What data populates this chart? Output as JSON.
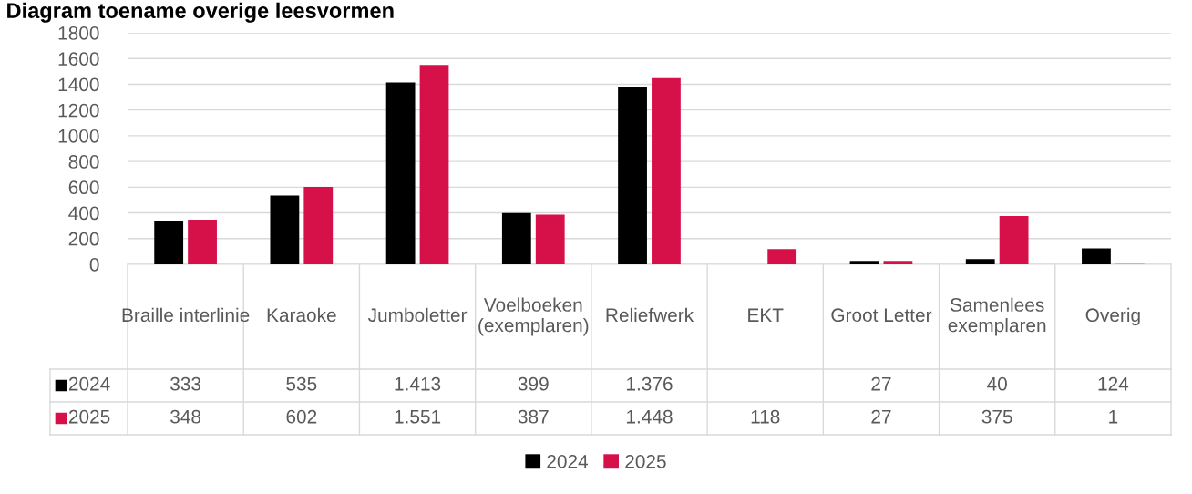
{
  "chart_data": {
    "type": "bar",
    "title": "Diagram toename overige leesvormen",
    "categories": [
      "Braille interlinie",
      "Karaoke",
      "Jumboletter",
      "Voelboeken (exemplaren)",
      "Reliefwerk",
      "EKT",
      "Groot Letter",
      "Samenlees exemplaren",
      "Overig"
    ],
    "series": [
      {
        "name": "2024",
        "color": "#000000",
        "values": [
          333,
          535,
          1413,
          399,
          1376,
          null,
          27,
          40,
          124
        ],
        "value_labels": [
          "333",
          "535",
          "1.413",
          "399",
          "1.376",
          null,
          "27",
          "40",
          "124"
        ]
      },
      {
        "name": "2025",
        "color": "#d6114a",
        "values": [
          348,
          602,
          1551,
          387,
          1448,
          118,
          27,
          375,
          1
        ],
        "value_labels": [
          "348",
          "602",
          "1.551",
          "387",
          "1.448",
          "118",
          "27",
          "375",
          "1"
        ]
      }
    ],
    "ylim": [
      0,
      1800
    ],
    "yticks": [
      0,
      200,
      400,
      600,
      800,
      1000,
      1200,
      1400,
      1600,
      1800
    ],
    "grid": "y",
    "legend": "bottom"
  }
}
